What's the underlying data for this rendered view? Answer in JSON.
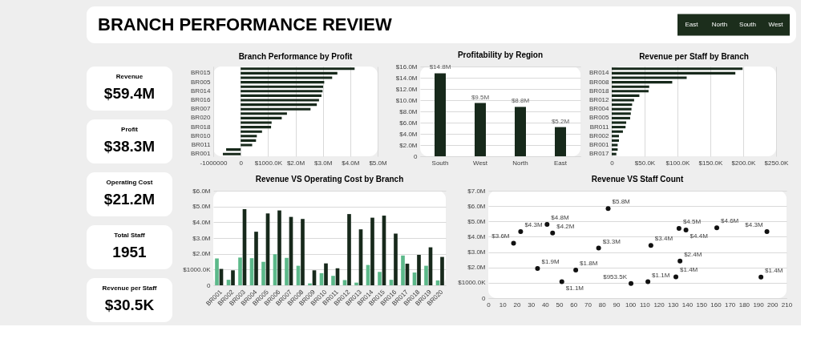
{
  "chart_data": [
    {
      "type": "other",
      "title": "BRANCH PERFORMANCE REVIEW",
      "annotations": [
        "East",
        "North",
        "South",
        "West"
      ]
    },
    {
      "type": "other",
      "categories": [
        "Revenue",
        "Profit",
        "Operating Cost",
        "Total Staff",
        "Revenue per Staff"
      ],
      "value_labels": [
        "$59.4M",
        "$38.3M",
        "$21.2M",
        "1951",
        "$30.5K"
      ]
    },
    {
      "type": "bar",
      "title": "Branch Performance by Profit",
      "orientation": "horizontal",
      "categories": [
        null,
        "BR015",
        null,
        "BR005",
        null,
        "BR014",
        null,
        "BR016",
        null,
        "BR007",
        null,
        "BR020",
        null,
        "BR018",
        null,
        "BR010",
        null,
        "BR011",
        null,
        "BR001"
      ],
      "values": [
        4160000,
        3530000,
        3340000,
        3050000,
        3010000,
        2990000,
        2950000,
        2860000,
        2780000,
        2550000,
        1690000,
        1500000,
        1130000,
        1110000,
        780000,
        590000,
        560000,
        420000,
        -530000,
        -650000
      ],
      "color": "#17291b",
      "xlim": [
        -1000000,
        5000000
      ],
      "xticks": [
        -1000000,
        0,
        {
          "value": 1000000,
          "label": "$1000.0K"
        },
        {
          "value": 2000000,
          "label": "$2.0M"
        },
        {
          "value": 3000000,
          "label": "$3.0M"
        },
        {
          "value": 4000000,
          "label": "$4.0M"
        },
        {
          "value": 5000000,
          "label": "$5.0M"
        }
      ],
      "grid": "x"
    },
    {
      "type": "bar",
      "title": "Profitability by Region",
      "categories": [
        "South",
        "West",
        "North",
        "East"
      ],
      "values": [
        14800000,
        9500000,
        8800000,
        5200000
      ],
      "value_labels": [
        "$14.8M",
        "$9.5M",
        "$8.8M",
        "$5.2M"
      ],
      "color": "#17291b",
      "ylim": [
        0,
        16000000
      ],
      "yticks": [
        0,
        {
          "value": 2000000,
          "label": "$2.0M"
        },
        {
          "value": 4000000,
          "label": "$4.0M"
        },
        {
          "value": 6000000,
          "label": "$6.0M"
        },
        {
          "value": 8000000,
          "label": "$8.0M"
        },
        {
          "value": 10000000,
          "label": "$10.0M"
        },
        {
          "value": 12000000,
          "label": "$12.0M"
        },
        {
          "value": 14000000,
          "label": "$14.0M"
        },
        {
          "value": 16000000,
          "label": "$16.0M"
        }
      ],
      "grid": "y"
    },
    {
      "type": "bar",
      "title": "Revenue per Staff by Branch",
      "orientation": "horizontal",
      "categories": [
        null,
        "BR014",
        null,
        "BR008",
        null,
        "BR018",
        null,
        "BR012",
        null,
        "BR004",
        null,
        "BR005",
        null,
        "BR011",
        null,
        "BR002",
        null,
        "BR001",
        null,
        "BR017"
      ],
      "values": [
        199000,
        188000,
        114000,
        92000,
        57000,
        56000,
        42000,
        34000,
        31000,
        30000,
        29000,
        28000,
        22000,
        21000,
        17000,
        11000,
        11000,
        9000,
        9000,
        7000
      ],
      "color": "#17291b",
      "xlim": [
        0,
        250000
      ],
      "xticks": [
        0,
        {
          "value": 50000,
          "label": "$50.0K"
        },
        {
          "value": 100000,
          "label": "$100.0K"
        },
        {
          "value": 150000,
          "label": "$150.0K"
        },
        {
          "value": 200000,
          "label": "$200.0K"
        },
        {
          "value": 250000,
          "label": "$250.0K"
        }
      ],
      "grid": "x"
    },
    {
      "type": "bar",
      "title": "Revenue VS Operating Cost by Branch",
      "categories": [
        "BR001",
        "BR002",
        "BR003",
        "BR004",
        "BR005",
        "BR006",
        "BR007",
        "BR008",
        "BR009",
        "BR010",
        "BR011",
        "BR012",
        "BR013",
        "BR014",
        "BR015",
        "BR016",
        "BR017",
        "BR018",
        "BR019",
        "BR020"
      ],
      "series": [
        {
          "color": "#5cb98a",
          "values": [
            1700000,
            350000,
            1760000,
            1720000,
            1490000,
            1970000,
            1740000,
            1240000,
            120000,
            770000,
            600000,
            330000,
            170000,
            1290000,
            850000,
            350000,
            1890000,
            810000,
            1240000,
            310000
          ]
        },
        {
          "color": "#17291b",
          "values": [
            1040000,
            950000,
            4830000,
            3400000,
            4560000,
            4750000,
            4340000,
            4210000,
            950000,
            1390000,
            1080000,
            4520000,
            3550000,
            4290000,
            4420000,
            3280000,
            1370000,
            1930000,
            2410000,
            1800000
          ]
        }
      ],
      "ylim": [
        0,
        6000000
      ],
      "yticks": [
        0,
        {
          "value": 1000000,
          "label": "$1000.0K"
        },
        {
          "value": 2000000,
          "label": "$2.0M"
        },
        {
          "value": 3000000,
          "label": "$3.0M"
        },
        {
          "value": 4000000,
          "label": "$4.0M"
        },
        {
          "value": 5000000,
          "label": "$5.0M"
        },
        {
          "value": 6000000,
          "label": "$6.0M"
        }
      ],
      "grid": "y"
    },
    {
      "type": "scatter",
      "title": "Revenue VS Staff Count",
      "x": [
        17.8,
        22.8,
        34.7,
        41.4,
        45.3,
        51.8,
        61.6,
        77.7,
        84.4,
        100.5,
        112.4,
        114.5,
        132.1,
        134.3,
        135.0,
        139.2,
        160.9,
        192.0,
        196.2
      ],
      "values": [
        3580000,
        4330000,
        1930000,
        4810000,
        4240000,
        1070000,
        1830000,
        3260000,
        5840000,
        953500,
        1070000,
        3440000,
        1390000,
        4540000,
        2410000,
        4440000,
        4590000,
        1370000,
        4340000
      ],
      "value_labels": [
        "$3.6M",
        "$4.3M",
        "$1.9M",
        "$4.8M",
        "$4.2M",
        "$1.1M",
        "$1.8M",
        "$3.3M",
        "$5.8M",
        "$953.5K",
        "$1.1M",
        "$3.4M",
        "$1.4M",
        "$4.5M",
        "$2.4M",
        "$4.4M",
        "$4.6M",
        "$1.4M",
        "$4.3M"
      ],
      "color": "#111111",
      "marker": "circle",
      "xlim": [
        0,
        210
      ],
      "xticks": [
        0,
        10,
        20,
        30,
        40,
        50,
        60,
        70,
        80,
        90,
        100,
        110,
        120,
        130,
        140,
        150,
        160,
        170,
        180,
        190,
        200,
        210
      ],
      "ylim": [
        0,
        7000000
      ],
      "yticks": [
        0,
        {
          "value": 1000000,
          "label": "$1000.0K"
        },
        {
          "value": 2000000,
          "label": "$2.0M"
        },
        {
          "value": 3000000,
          "label": "$3.0M"
        },
        {
          "value": 4000000,
          "label": "$4.0M"
        },
        {
          "value": 5000000,
          "label": "$5.0M"
        },
        {
          "value": 6000000,
          "label": "$6.0M"
        },
        {
          "value": 7000000,
          "label": "$7.0M"
        }
      ],
      "grid": "y"
    }
  ]
}
